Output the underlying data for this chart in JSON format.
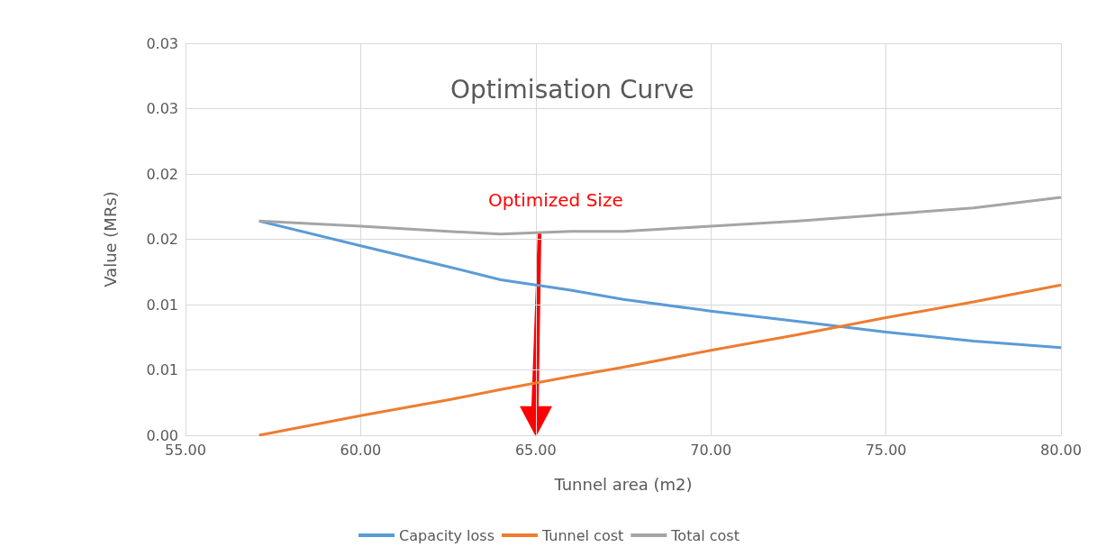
{
  "chart_data": {
    "type": "line",
    "title": "Optimisation Curve",
    "xlabel": "Tunnel area (m2)",
    "ylabel": "Value (MRs)",
    "x": [
      57.1,
      60,
      62.5,
      64,
      66,
      67.5,
      70,
      72.5,
      75,
      77.5,
      80
    ],
    "series": [
      {
        "name": "Capacity loss",
        "color": "#5b9bd5",
        "values": [
          0.0164,
          0.0145,
          0.0129,
          0.0119,
          0.0111,
          0.0104,
          0.0095,
          0.0087,
          0.0079,
          0.0072,
          0.0067
        ]
      },
      {
        "name": "Tunnel cost",
        "color": "#ed7d31",
        "values": [
          0,
          0.0015,
          0.0027,
          0.0035,
          0.0045,
          0.0052,
          0.0065,
          0.0077,
          0.009,
          0.0102,
          0.0115
        ]
      },
      {
        "name": "Total cost",
        "color": "#a5a5a5",
        "values": [
          0.0164,
          0.016,
          0.0156,
          0.0154,
          0.0156,
          0.0156,
          0.016,
          0.0164,
          0.0169,
          0.0174,
          0.0182
        ]
      }
    ],
    "xlim": [
      55,
      80
    ],
    "xticks": [
      {
        "value": 55,
        "label": "55.00"
      },
      {
        "value": 60,
        "label": "60.00"
      },
      {
        "value": 65,
        "label": "65.00"
      },
      {
        "value": 70,
        "label": "70.00"
      },
      {
        "value": 75,
        "label": "75.00"
      },
      {
        "value": 80,
        "label": "80.00"
      }
    ],
    "ylim": [
      0,
      0.03
    ],
    "yticks": [
      {
        "value": 0,
        "label": "0.00"
      },
      {
        "value": 0.005,
        "label": "0.01"
      },
      {
        "value": 0.01,
        "label": "0.01"
      },
      {
        "value": 0.015,
        "label": "0.02"
      },
      {
        "value": 0.02,
        "label": "0.02"
      },
      {
        "value": 0.025,
        "label": "0.03"
      },
      {
        "value": 0.03,
        "label": "0.03"
      }
    ],
    "annotations": [
      {
        "text": "Optimized Size",
        "x": 65,
        "y": 0.0155
      }
    ],
    "grid": true,
    "legend": "bottom",
    "marker": "none",
    "line_style": "solid"
  }
}
